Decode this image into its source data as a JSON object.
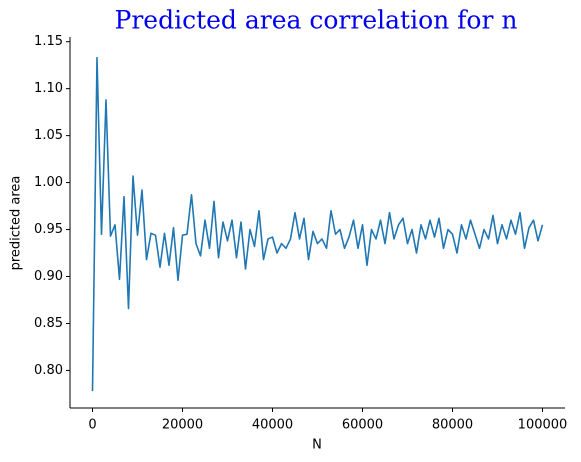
{
  "chart_data": {
    "type": "line",
    "title": "Predicted area correlation for n",
    "xlabel": "N",
    "ylabel": "predicted area",
    "xlim": [
      -5000,
      105000
    ],
    "ylim": [
      0.76,
      1.155
    ],
    "xticks": [
      0,
      20000,
      40000,
      60000,
      80000,
      100000
    ],
    "yticks": [
      {
        "value": 0.8,
        "label": "0.80"
      },
      0.85,
      {
        "value": 0.9,
        "label": "0.90"
      },
      0.95,
      {
        "value": 1.0,
        "label": "1.00"
      },
      1.05,
      {
        "value": 1.1,
        "label": "1.10"
      },
      1.15
    ],
    "x": [
      0,
      1000,
      2000,
      3000,
      4000,
      5000,
      6000,
      7000,
      8000,
      9000,
      10000,
      11000,
      12000,
      13000,
      14000,
      15000,
      16000,
      17000,
      18000,
      19000,
      20000,
      21000,
      22000,
      23000,
      24000,
      25000,
      26000,
      27000,
      28000,
      29000,
      30000,
      31000,
      32000,
      33000,
      34000,
      35000,
      36000,
      37000,
      38000,
      39000,
      40000,
      41000,
      42000,
      43000,
      44000,
      45000,
      46000,
      47000,
      48000,
      49000,
      50000,
      51000,
      52000,
      53000,
      54000,
      55000,
      56000,
      57000,
      58000,
      59000,
      60000,
      61000,
      62000,
      63000,
      64000,
      65000,
      66000,
      67000,
      68000,
      69000,
      70000,
      71000,
      72000,
      73000,
      74000,
      75000,
      76000,
      77000,
      78000,
      79000,
      80000,
      81000,
      82000,
      83000,
      84000,
      85000,
      86000,
      87000,
      88000,
      89000,
      90000,
      91000,
      92000,
      93000,
      94000,
      95000,
      96000,
      97000,
      98000,
      99000,
      100000
    ],
    "series": [
      {
        "name": "predicted area",
        "color": "#1f77b4",
        "values": [
          0.778,
          1.133,
          0.945,
          1.088,
          0.943,
          0.955,
          0.897,
          0.985,
          0.866,
          1.007,
          0.944,
          0.992,
          0.918,
          0.946,
          0.944,
          0.91,
          0.946,
          0.912,
          0.952,
          0.896,
          0.944,
          0.945,
          0.987,
          0.935,
          0.922,
          0.96,
          0.93,
          0.98,
          0.92,
          0.958,
          0.938,
          0.96,
          0.92,
          0.958,
          0.908,
          0.95,
          0.932,
          0.97,
          0.918,
          0.94,
          0.942,
          0.925,
          0.935,
          0.93,
          0.94,
          0.968,
          0.94,
          0.962,
          0.918,
          0.948,
          0.935,
          0.94,
          0.93,
          0.97,
          0.945,
          0.95,
          0.93,
          0.942,
          0.96,
          0.93,
          0.955,
          0.912,
          0.95,
          0.94,
          0.96,
          0.935,
          0.968,
          0.94,
          0.955,
          0.962,
          0.935,
          0.95,
          0.925,
          0.955,
          0.94,
          0.96,
          0.942,
          0.962,
          0.93,
          0.95,
          0.945,
          0.925,
          0.955,
          0.94,
          0.96,
          0.945,
          0.93,
          0.95,
          0.94,
          0.965,
          0.935,
          0.955,
          0.94,
          0.96,
          0.945,
          0.968,
          0.93,
          0.952,
          0.96,
          0.938,
          0.955
        ]
      }
    ]
  }
}
